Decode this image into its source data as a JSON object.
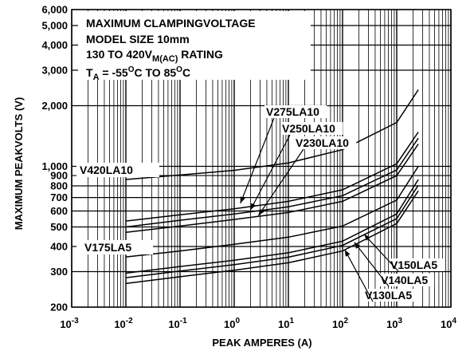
{
  "chart_data": {
    "type": "line",
    "x_scale": "log",
    "y_scale": "log",
    "xlim": [
      0.001,
      10000
    ],
    "ylim": [
      200,
      6000
    ],
    "grid": true,
    "xlabel": "PEAK AMPERES (A)",
    "ylabel": "MAXIMUM PEAKVOLTS (V)",
    "title_lines": [
      {
        "text": "MAXIMUM CLAMPINGVOLTAGE"
      },
      {
        "text": "MODEL SIZE 10mm"
      },
      {
        "pre": "130 TO 420V",
        "sub": "M(AC)",
        "post": " RATING"
      },
      {
        "pre": "T",
        "sub": "A",
        "mid": " = -55",
        "sup1": "O",
        "mid2": "C TO 85",
        "sup2": "O",
        "post": "C"
      }
    ],
    "x_ticks": [
      {
        "base": "10",
        "exp": "-3",
        "value": 0.001
      },
      {
        "base": "10",
        "exp": "-2",
        "value": 0.01
      },
      {
        "base": "10",
        "exp": "-1",
        "value": 0.1
      },
      {
        "base": "10",
        "exp": "0",
        "value": 1
      },
      {
        "base": "10",
        "exp": "1",
        "value": 10
      },
      {
        "base": "10",
        "exp": "2",
        "value": 100
      },
      {
        "base": "10",
        "exp": "3",
        "value": 1000
      },
      {
        "base": "10",
        "exp": "4",
        "value": 10000
      }
    ],
    "y_ticks": [
      {
        "label": "200",
        "value": 200
      },
      {
        "label": "300",
        "value": 300
      },
      {
        "label": "400",
        "value": 400
      },
      {
        "label": "500",
        "value": 500
      },
      {
        "label": "600",
        "value": 600
      },
      {
        "label": "700",
        "value": 700
      },
      {
        "label": "800",
        "value": 800
      },
      {
        "label": "900",
        "value": 900
      },
      {
        "label": "1,000",
        "value": 1000
      },
      {
        "label": "2,000",
        "value": 2000
      },
      {
        "label": "3,000",
        "value": 3000
      },
      {
        "label": "4,000",
        "value": 4000
      },
      {
        "label": "5,000",
        "value": 5000
      },
      {
        "label": "6,000",
        "value": 6000
      }
    ],
    "series": [
      {
        "name": "V420LA10",
        "points": [
          [
            0.01,
            860
          ],
          [
            0.1,
            905
          ],
          [
            1,
            955
          ],
          [
            10,
            1040
          ],
          [
            100,
            1210
          ],
          [
            1000,
            1650
          ],
          [
            2500,
            2400
          ]
        ]
      },
      {
        "name": "V275LA10",
        "points": [
          [
            0.01,
            535
          ],
          [
            0.1,
            575
          ],
          [
            1,
            615
          ],
          [
            10,
            670
          ],
          [
            100,
            765
          ],
          [
            1000,
            1030
          ],
          [
            2500,
            1480
          ]
        ]
      },
      {
        "name": "V250LA10",
        "points": [
          [
            0.01,
            500
          ],
          [
            0.1,
            540
          ],
          [
            1,
            580
          ],
          [
            10,
            630
          ],
          [
            100,
            715
          ],
          [
            1000,
            960
          ],
          [
            2500,
            1380
          ]
        ]
      },
      {
        "name": "V230LA10",
        "points": [
          [
            0.01,
            470
          ],
          [
            0.1,
            505
          ],
          [
            1,
            545
          ],
          [
            10,
            590
          ],
          [
            100,
            670
          ],
          [
            1000,
            900
          ],
          [
            2500,
            1290
          ]
        ]
      },
      {
        "name": "V175LA5",
        "points": [
          [
            0.01,
            355
          ],
          [
            0.1,
            380
          ],
          [
            1,
            410
          ],
          [
            10,
            445
          ],
          [
            100,
            505
          ],
          [
            1000,
            680
          ],
          [
            2500,
            1000
          ]
        ]
      },
      {
        "name": "V150LA5",
        "points": [
          [
            0.01,
            295
          ],
          [
            0.1,
            318
          ],
          [
            1,
            342
          ],
          [
            10,
            372
          ],
          [
            100,
            425
          ],
          [
            1000,
            580
          ],
          [
            2500,
            860
          ]
        ]
      },
      {
        "name": "V140LA5",
        "points": [
          [
            0.01,
            280
          ],
          [
            0.1,
            302
          ],
          [
            1,
            325
          ],
          [
            10,
            354
          ],
          [
            100,
            405
          ],
          [
            1000,
            550
          ],
          [
            2500,
            805
          ]
        ]
      },
      {
        "name": "V130LA5",
        "points": [
          [
            0.01,
            262
          ],
          [
            0.1,
            283
          ],
          [
            1,
            305
          ],
          [
            10,
            332
          ],
          [
            100,
            380
          ],
          [
            1000,
            520
          ],
          [
            2500,
            755
          ]
        ]
      }
    ]
  }
}
